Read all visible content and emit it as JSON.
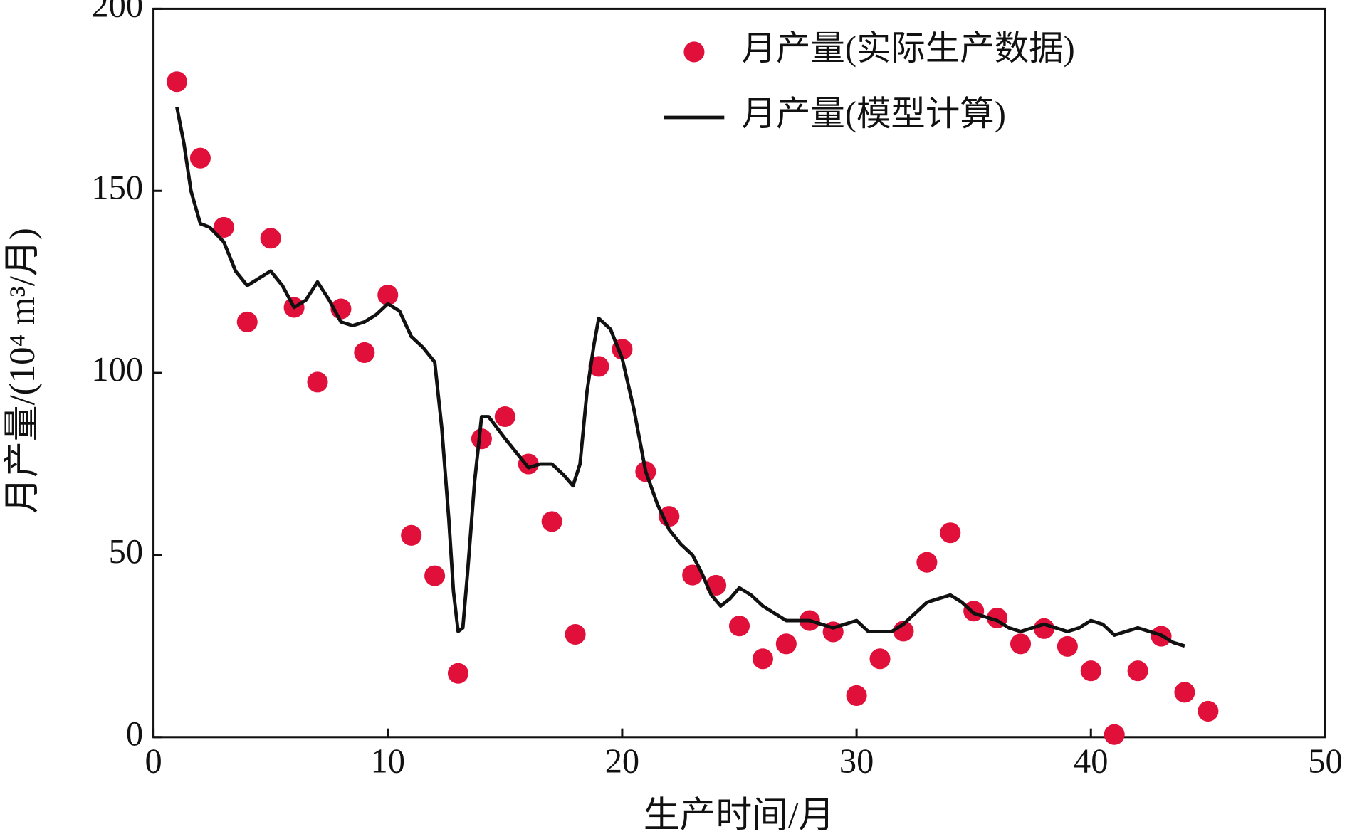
{
  "chart_data": {
    "type": "scatter",
    "xlabel": "生产时间/月",
    "ylabel": "月产量/(10⁴ m³/月)",
    "xlim": [
      0,
      50
    ],
    "xticks": [
      0,
      10,
      20,
      30,
      40,
      50
    ],
    "ylim": [
      0,
      200
    ],
    "yticks": [
      0,
      50,
      100,
      150,
      200
    ],
    "legend": "upper right",
    "series": [
      {
        "name": "月产量(实际生产数据)",
        "type": "scatter",
        "color": "#e0103a",
        "x": [
          1,
          2,
          3,
          4,
          5,
          6,
          7,
          8,
          9,
          10,
          11,
          12,
          13,
          14,
          15,
          16,
          17,
          18,
          19,
          20,
          21,
          22,
          23,
          24,
          25,
          26,
          27,
          28,
          29,
          30,
          31,
          32,
          33,
          34,
          35,
          36,
          37,
          38,
          39,
          40,
          41,
          42,
          43,
          44,
          45
        ],
        "values": [
          180,
          159,
          140,
          114,
          137,
          118,
          97.5,
          117.6,
          105.6,
          121.4,
          55.4,
          44.3,
          17.5,
          81.9,
          88,
          75,
          59.2,
          28.2,
          101.8,
          106.5,
          72.9,
          60.6,
          44.5,
          41.7,
          30.5,
          21.5,
          25.6,
          32,
          28.9,
          11.4,
          21.5,
          29.1,
          48,
          56.1,
          34.6,
          32.7,
          25.6,
          29.8,
          24.9,
          18.2,
          0.7,
          18.2,
          27.7,
          12.3,
          7.1
        ]
      },
      {
        "name": "月产量(模型计算)",
        "type": "line",
        "color": "#111111",
        "x": [
          1,
          1.3,
          1.6,
          2,
          2.4,
          3,
          3.5,
          4,
          4.5,
          5,
          5.5,
          6,
          6.5,
          7,
          7.5,
          8,
          8.5,
          9,
          9.5,
          10,
          10.5,
          11,
          11.5,
          12,
          12.3,
          12.6,
          12.8,
          13,
          13.2,
          13.4,
          13.7,
          14,
          14.3,
          15,
          15.5,
          16,
          16.5,
          17,
          17.5,
          17.9,
          18.2,
          18.5,
          18.8,
          19,
          19.5,
          20,
          20.5,
          21,
          21.5,
          22,
          22.5,
          23,
          23.4,
          23.8,
          24.2,
          24.6,
          25,
          25.5,
          26,
          26.5,
          27,
          28,
          29,
          29.5,
          30,
          30.5,
          31,
          31.5,
          32,
          32.5,
          33,
          33.5,
          34,
          34.5,
          35,
          35.5,
          36,
          36.5,
          37,
          37.5,
          38,
          38.5,
          39,
          39.5,
          40,
          40.5,
          41,
          41.5,
          42,
          42.5,
          43,
          43.5,
          44
        ],
        "values": [
          173,
          163,
          150,
          141,
          140,
          136,
          128,
          124,
          126,
          128,
          124,
          118,
          120,
          125,
          120,
          114,
          113,
          114,
          116,
          119,
          117,
          110,
          107,
          103,
          85,
          60,
          40,
          29,
          30,
          45,
          70,
          88,
          88,
          82,
          78,
          74,
          75,
          75,
          72,
          69,
          75,
          95,
          108,
          115,
          112,
          104,
          90,
          73,
          64,
          57,
          53,
          50,
          45,
          39,
          36,
          38,
          41,
          39,
          36,
          34,
          32,
          32,
          30,
          31,
          32,
          29,
          29,
          29,
          31,
          34,
          37,
          38,
          39,
          37,
          34,
          33,
          32,
          30,
          29,
          30,
          31,
          30,
          29,
          30,
          32,
          31,
          28,
          29,
          30,
          29,
          28,
          26,
          25
        ]
      }
    ]
  }
}
